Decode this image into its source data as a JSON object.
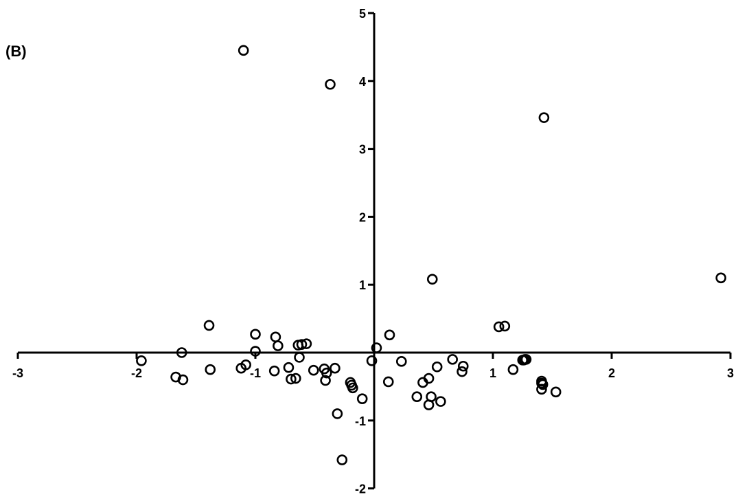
{
  "panel_label": "(B)",
  "chart_data": {
    "type": "scatter",
    "title": "",
    "xlabel": "",
    "ylabel": "",
    "xlim": [
      -3,
      3
    ],
    "ylim": [
      -2,
      5
    ],
    "x_ticks": [
      -3,
      -2,
      -1,
      1,
      2,
      3
    ],
    "y_ticks": [
      -2,
      -1,
      1,
      2,
      3,
      4,
      5
    ],
    "x_tick_labels": [
      "-3",
      "-2",
      "-1",
      "1",
      "2",
      "3"
    ],
    "y_tick_labels": [
      "-2",
      "-1",
      "1",
      "2",
      "3",
      "4",
      "5"
    ],
    "grid": false,
    "legend": "none",
    "marker": "open-circle",
    "marker_color": "#000000",
    "series": [
      {
        "x": [
          -1.1,
          -0.37,
          1.43,
          0.49,
          2.92,
          1.05,
          1.1,
          -1.39,
          -1.0,
          -0.81,
          -0.64,
          -0.61,
          -0.57,
          -0.83,
          -1.0,
          -0.63,
          -1.62,
          -1.96,
          -1.08,
          -1.12,
          -1.38,
          -1.67,
          -1.61,
          -0.84,
          -0.72,
          -0.7,
          -0.66,
          -0.51,
          -0.42,
          -0.4,
          -0.33,
          -0.41,
          -0.2,
          -0.18,
          -0.19,
          -0.1,
          0.02,
          -0.02,
          0.12,
          0.13,
          0.23,
          0.53,
          0.66,
          0.75,
          0.74,
          1.17,
          1.25,
          1.27,
          1.28,
          1.26,
          0.41,
          0.46,
          0.36,
          0.48,
          0.56,
          0.46,
          1.41,
          1.41,
          1.42,
          1.41,
          1.53,
          -0.31,
          -0.27
        ],
        "y": [
          4.45,
          3.95,
          3.46,
          1.08,
          1.1,
          0.38,
          0.39,
          0.4,
          0.27,
          0.1,
          0.11,
          0.12,
          0.13,
          0.23,
          0.02,
          -0.07,
          0.0,
          -0.12,
          -0.18,
          -0.23,
          -0.25,
          -0.36,
          -0.4,
          -0.27,
          -0.22,
          -0.39,
          -0.38,
          -0.26,
          -0.24,
          -0.3,
          -0.23,
          -0.41,
          -0.44,
          -0.52,
          -0.48,
          -0.68,
          0.07,
          -0.12,
          -0.43,
          0.26,
          -0.13,
          -0.21,
          -0.1,
          -0.2,
          -0.28,
          -0.25,
          -0.11,
          -0.1,
          -0.1,
          -0.11,
          -0.44,
          -0.38,
          -0.65,
          -0.65,
          -0.72,
          -0.77,
          -0.42,
          -0.45,
          -0.47,
          -0.54,
          -0.58,
          -0.9,
          -1.58
        ]
      }
    ]
  }
}
